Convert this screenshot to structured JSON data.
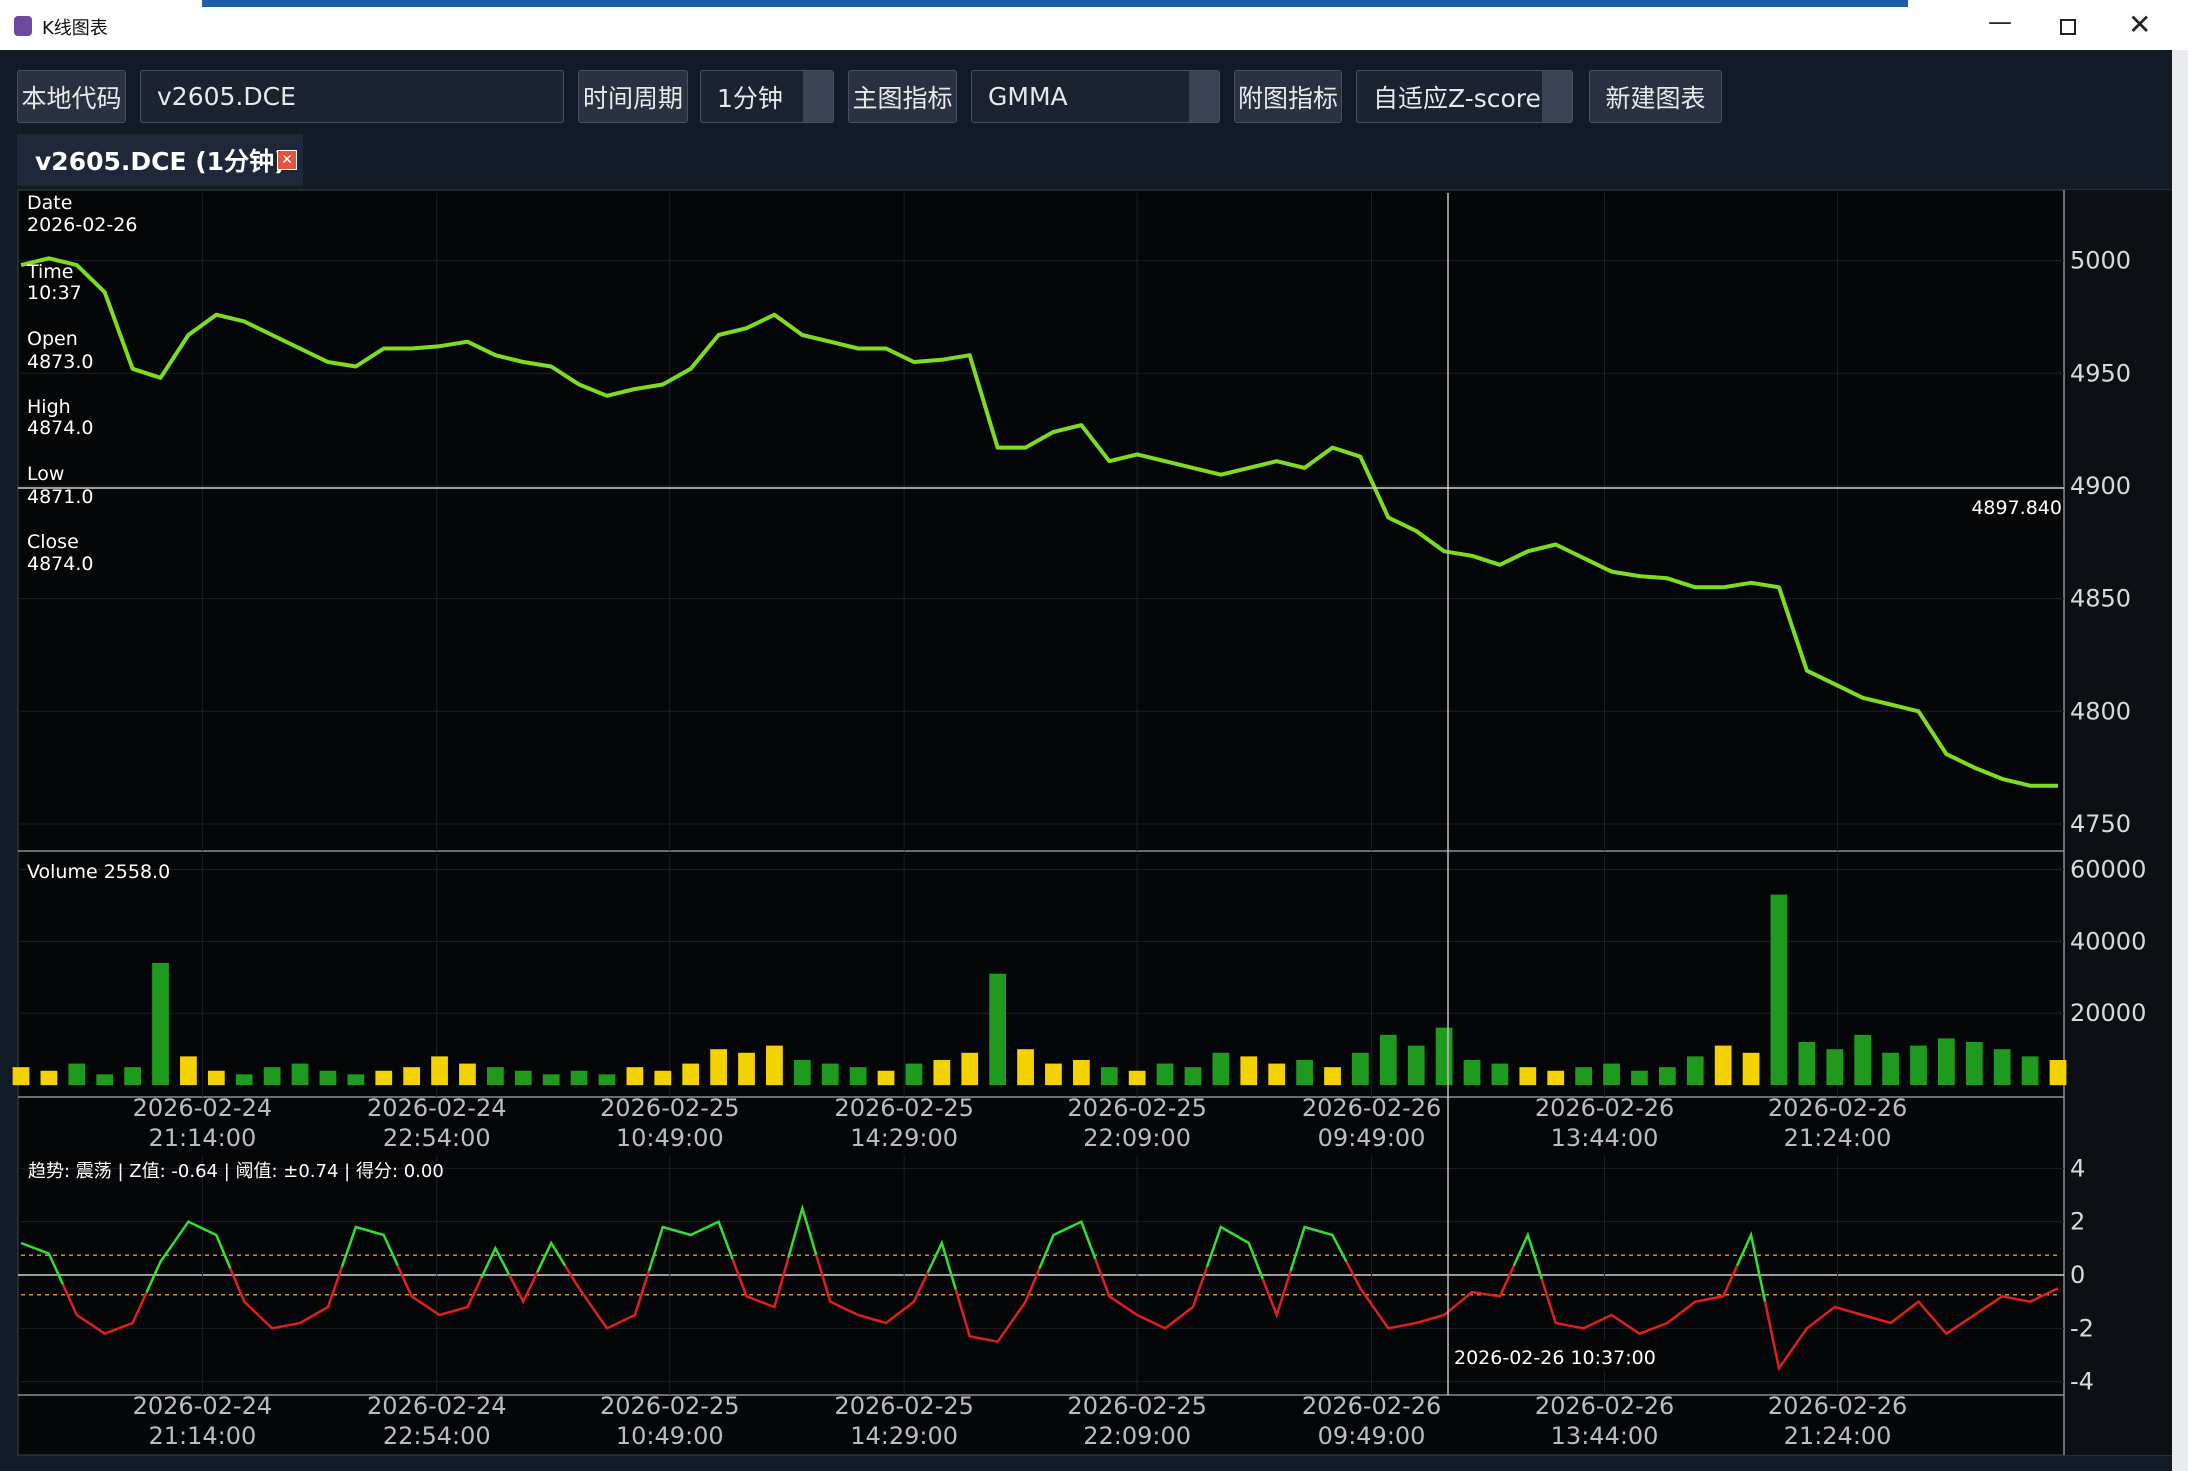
{
  "window": {
    "title": "K线图表"
  },
  "toolbar": {
    "code_label": "本地代码",
    "code_value": "v2605.DCE",
    "period_label": "时间周期",
    "period_value": "1分钟",
    "main_label": "主图指标",
    "main_value": "GMMA",
    "sub_label": "附图指标",
    "sub_value": "自适应Z-score",
    "new_chart": "新建图表"
  },
  "tab": {
    "title": "v2605.DCE (1分钟)"
  },
  "info_panel": {
    "date_label": "Date",
    "date": "2026-02-26",
    "time_label": "Time",
    "time": "10:37",
    "open_label": "Open",
    "open": "4873.0",
    "high_label": "High",
    "high": "4874.0",
    "low_label": "Low",
    "low": "4871.0",
    "close_label": "Close",
    "close": "4874.0"
  },
  "crosshair": {
    "price": "4897.840",
    "time": "2026-02-26 10:37:00"
  },
  "chart_data": [
    {
      "type": "line",
      "color": "#7ddc1f",
      "values": [
        4998,
        5001,
        4998,
        4986,
        4952,
        4948,
        4967,
        4976,
        4973,
        4967,
        4961,
        4955,
        4953,
        4961,
        4961,
        4962,
        4964,
        4958,
        4955,
        4953,
        4945,
        4940,
        4943,
        4945,
        4952,
        4967,
        4970,
        4976,
        4967,
        4964,
        4961,
        4961,
        4955,
        4956,
        4958,
        4917,
        4917,
        4924,
        4927,
        4911,
        4914,
        4911,
        4908,
        4905,
        4908,
        4911,
        4908,
        4917,
        4913,
        4886,
        4880,
        4871,
        4869,
        4865,
        4871,
        4874,
        4868,
        4862,
        4860,
        4859,
        4855,
        4855,
        4857,
        4855,
        4818,
        4812,
        4806,
        4803,
        4800,
        4781,
        4775,
        4770,
        4767,
        4767
      ],
      "xlim": [
        0,
        73
      ],
      "ylim": [
        4738,
        5030
      ],
      "yticks": [
        4750,
        4800,
        4850,
        4900,
        4950,
        5000
      ],
      "grid": true
    },
    {
      "type": "bar",
      "title": "Volume 2558.0",
      "up_color": "#f2d200",
      "down_color": "#1f9a1f",
      "values": [
        5000,
        4000,
        6000,
        3000,
        5000,
        34000,
        8000,
        4000,
        3000,
        5000,
        6000,
        4000,
        3000,
        4000,
        5000,
        8000,
        6000,
        5000,
        4000,
        3000,
        4000,
        3000,
        5000,
        4000,
        6000,
        10000,
        9000,
        11000,
        7000,
        6000,
        5000,
        4000,
        6000,
        7000,
        9000,
        31000,
        10000,
        6000,
        7000,
        5000,
        4000,
        6000,
        5000,
        9000,
        8000,
        6000,
        7000,
        5000,
        9000,
        14000,
        11000,
        16000,
        7000,
        6000,
        5000,
        4000,
        5000,
        6000,
        4000,
        5000,
        8000,
        11000,
        9000,
        53000,
        12000,
        10000,
        14000,
        9000,
        11000,
        13000,
        12000,
        10000,
        8000,
        7000
      ],
      "xlim": [
        0,
        73
      ],
      "ylim": [
        -3300,
        64300
      ],
      "yticks": [
        20000,
        40000,
        60000
      ],
      "grid": true,
      "xticks": [
        {
          "value": 6.5,
          "label": "2026-02-24 21:14:00"
        },
        {
          "value": 14.9,
          "label": "2026-02-24 22:54:00"
        },
        {
          "value": 23.25,
          "label": "2026-02-25 10:49:00"
        },
        {
          "value": 31.65,
          "label": "2026-02-25 14:29:00"
        },
        {
          "value": 40,
          "label": "2026-02-25 22:09:00"
        },
        {
          "value": 48.4,
          "label": "2026-02-26 09:49:00"
        },
        {
          "value": 56.75,
          "label": "2026-02-26 13:44:00"
        },
        {
          "value": 65.1,
          "label": "2026-02-26 21:24:00"
        }
      ]
    },
    {
      "type": "line",
      "title": "趋势: 震荡 | Z值: -0.64 | 阈值: ±0.74 | 得分: 0.00",
      "pos_color": "#2fe02f",
      "neg_color": "#e01e1e",
      "threshold_color": "#c8922a",
      "values": [
        1.2,
        0.8,
        -1.5,
        -2.2,
        -1.8,
        0.5,
        2.0,
        1.5,
        -1.0,
        -2.0,
        -1.8,
        -1.2,
        1.8,
        1.5,
        -0.8,
        -1.5,
        -1.2,
        1.0,
        -1.0,
        1.2,
        -0.5,
        -2.0,
        -1.5,
        1.8,
        1.5,
        2.0,
        -0.8,
        -1.2,
        2.5,
        -1.0,
        -1.5,
        -1.8,
        -1.0,
        1.2,
        -2.3,
        -2.5,
        -1.0,
        1.5,
        2.0,
        -0.8,
        -1.5,
        -2.0,
        -1.2,
        1.8,
        1.2,
        -1.5,
        1.8,
        1.5,
        -0.5,
        -2.0,
        -1.8,
        -1.5,
        -0.64,
        -0.8,
        1.5,
        -1.8,
        -2.0,
        -1.5,
        -2.2,
        -1.8,
        -1.0,
        -0.8,
        1.5,
        -3.5,
        -2.0,
        -1.2,
        -1.5,
        -1.8,
        -1.0,
        -2.2,
        -1.5,
        -0.8,
        -1.0,
        -0.5
      ],
      "threshold": [
        -0.74,
        0.74
      ],
      "xlim": [
        0,
        73
      ],
      "ylim": [
        -4.5,
        4.5
      ],
      "yticks": [
        -4,
        -2,
        0,
        2,
        4
      ],
      "grid": true,
      "xticks": [
        {
          "value": 6.5,
          "label": "2026-02-24 21:14:00"
        },
        {
          "value": 14.9,
          "label": "2026-02-24 22:54:00"
        },
        {
          "value": 23.25,
          "label": "2026-02-25 10:49:00"
        },
        {
          "value": 31.65,
          "label": "2026-02-25 14:29:00"
        },
        {
          "value": 40,
          "label": "2026-02-25 22:09:00"
        },
        {
          "value": 48.4,
          "label": "2026-02-26 09:49:00"
        },
        {
          "value": 56.75,
          "label": "2026-02-26 13:44:00"
        },
        {
          "value": 65.1,
          "label": "2026-02-26 21:24:00"
        }
      ]
    }
  ]
}
